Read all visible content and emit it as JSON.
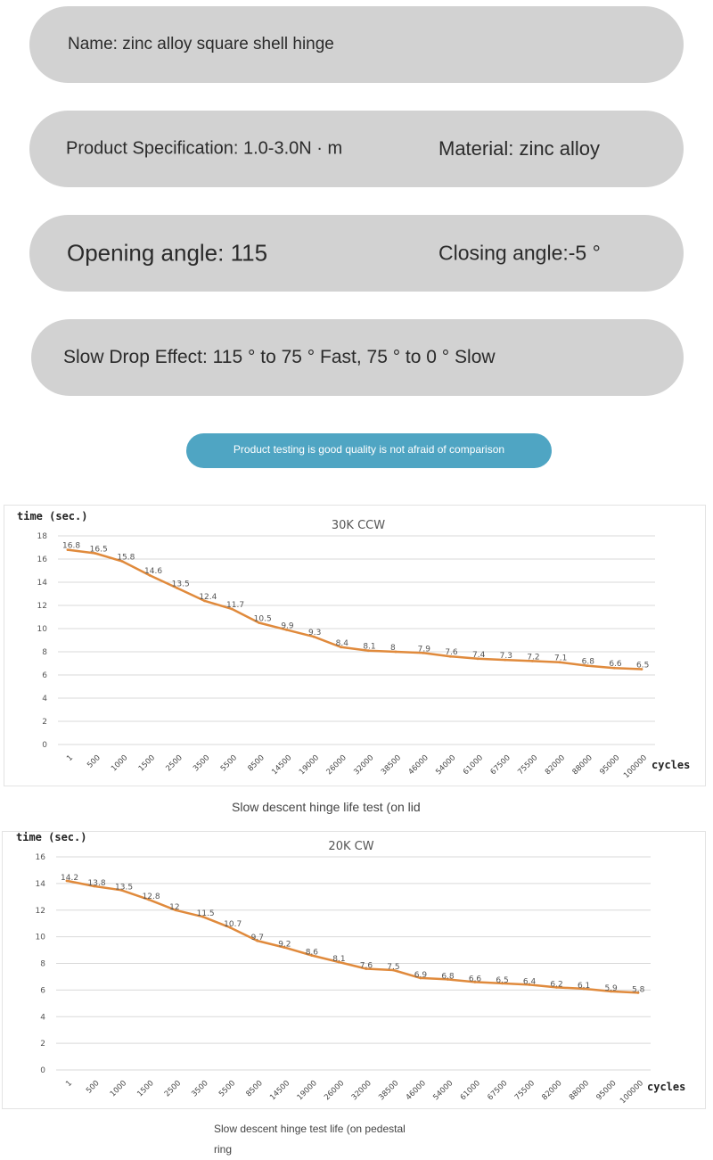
{
  "specs": {
    "name": "Name: zinc alloy square shell hinge",
    "specification": "Product Specification: 1.0-3.0N · m",
    "material": "Material: zinc alloy",
    "opening_angle": "Opening angle: 115",
    "closing_angle": "Closing angle:-5 °",
    "slow_drop": "Slow Drop Effect: 115 ° to 75 ° Fast, 75 ° to 0 ° Slow"
  },
  "banner": {
    "text": "Product testing is good quality is not afraid of comparison",
    "color": "#4fa5c3"
  },
  "captions": {
    "chart1": "Slow descent hinge life test (on lid",
    "chart2_line1": "Slow descent hinge test life (on pedestal",
    "chart2_line2": "ring"
  },
  "chart_data": [
    {
      "type": "line",
      "title": "30K CCW",
      "ylabel": "time (sec.)",
      "xlabel": "cycles",
      "ylim": [
        0,
        18
      ],
      "yticks": [
        0,
        2,
        4,
        6,
        8,
        10,
        12,
        14,
        16,
        18
      ],
      "grid": true,
      "line_color": "#e08a3c",
      "categories": [
        "1",
        "500",
        "1000",
        "1500",
        "2500",
        "3500",
        "5500",
        "8500",
        "14500",
        "19000",
        "26000",
        "32000",
        "38500",
        "46000",
        "54000",
        "61000",
        "67500",
        "75500",
        "82000",
        "88000",
        "95000",
        "100000"
      ],
      "values": [
        16.8,
        16.5,
        15.8,
        14.6,
        13.5,
        12.4,
        11.7,
        10.5,
        9.9,
        9.3,
        8.4,
        8.1,
        8,
        7.9,
        7.6,
        7.4,
        7.3,
        7.2,
        7.1,
        6.8,
        6.6,
        6.5
      ],
      "data_labels": [
        "16.8",
        "16.5",
        "15.8",
        "14.6",
        "13.5",
        "12.4",
        "11.7",
        "10.5",
        "9.9",
        "9.3",
        "8.4",
        "8.1",
        "8",
        "7.9",
        "7.6",
        "7.4",
        "7.3",
        "7.2",
        "7.1",
        "6.8",
        "6.6",
        "6.5"
      ]
    },
    {
      "type": "line",
      "title": "20K CW",
      "ylabel": "time (sec.)",
      "xlabel": "cycles",
      "ylim": [
        0,
        16
      ],
      "yticks": [
        0,
        2,
        4,
        6,
        8,
        10,
        12,
        14,
        16
      ],
      "grid": true,
      "line_color": "#e08a3c",
      "categories": [
        "1",
        "500",
        "1000",
        "1500",
        "2500",
        "3500",
        "5500",
        "8500",
        "14500",
        "19000",
        "26000",
        "32000",
        "38500",
        "46000",
        "54000",
        "61000",
        "67500",
        "75500",
        "82000",
        "88000",
        "95000",
        "100000"
      ],
      "values": [
        14.2,
        13.8,
        13.5,
        12.8,
        12,
        11.5,
        10.7,
        9.7,
        9.2,
        8.6,
        8.1,
        7.6,
        7.5,
        6.9,
        6.8,
        6.6,
        6.5,
        6.4,
        6.2,
        6.1,
        5.9,
        5.8
      ],
      "data_labels": [
        "14.2",
        "13.8",
        "13.5",
        "12.8",
        "12",
        "11.5",
        "10.7",
        "9.7",
        "9.2",
        "8.6",
        "8.1",
        "7.6",
        "7.5",
        "6.9",
        "6.8",
        "6.6",
        "6.5",
        "6.4",
        "6.2",
        "6.1",
        "5.9",
        "5.8"
      ]
    }
  ]
}
